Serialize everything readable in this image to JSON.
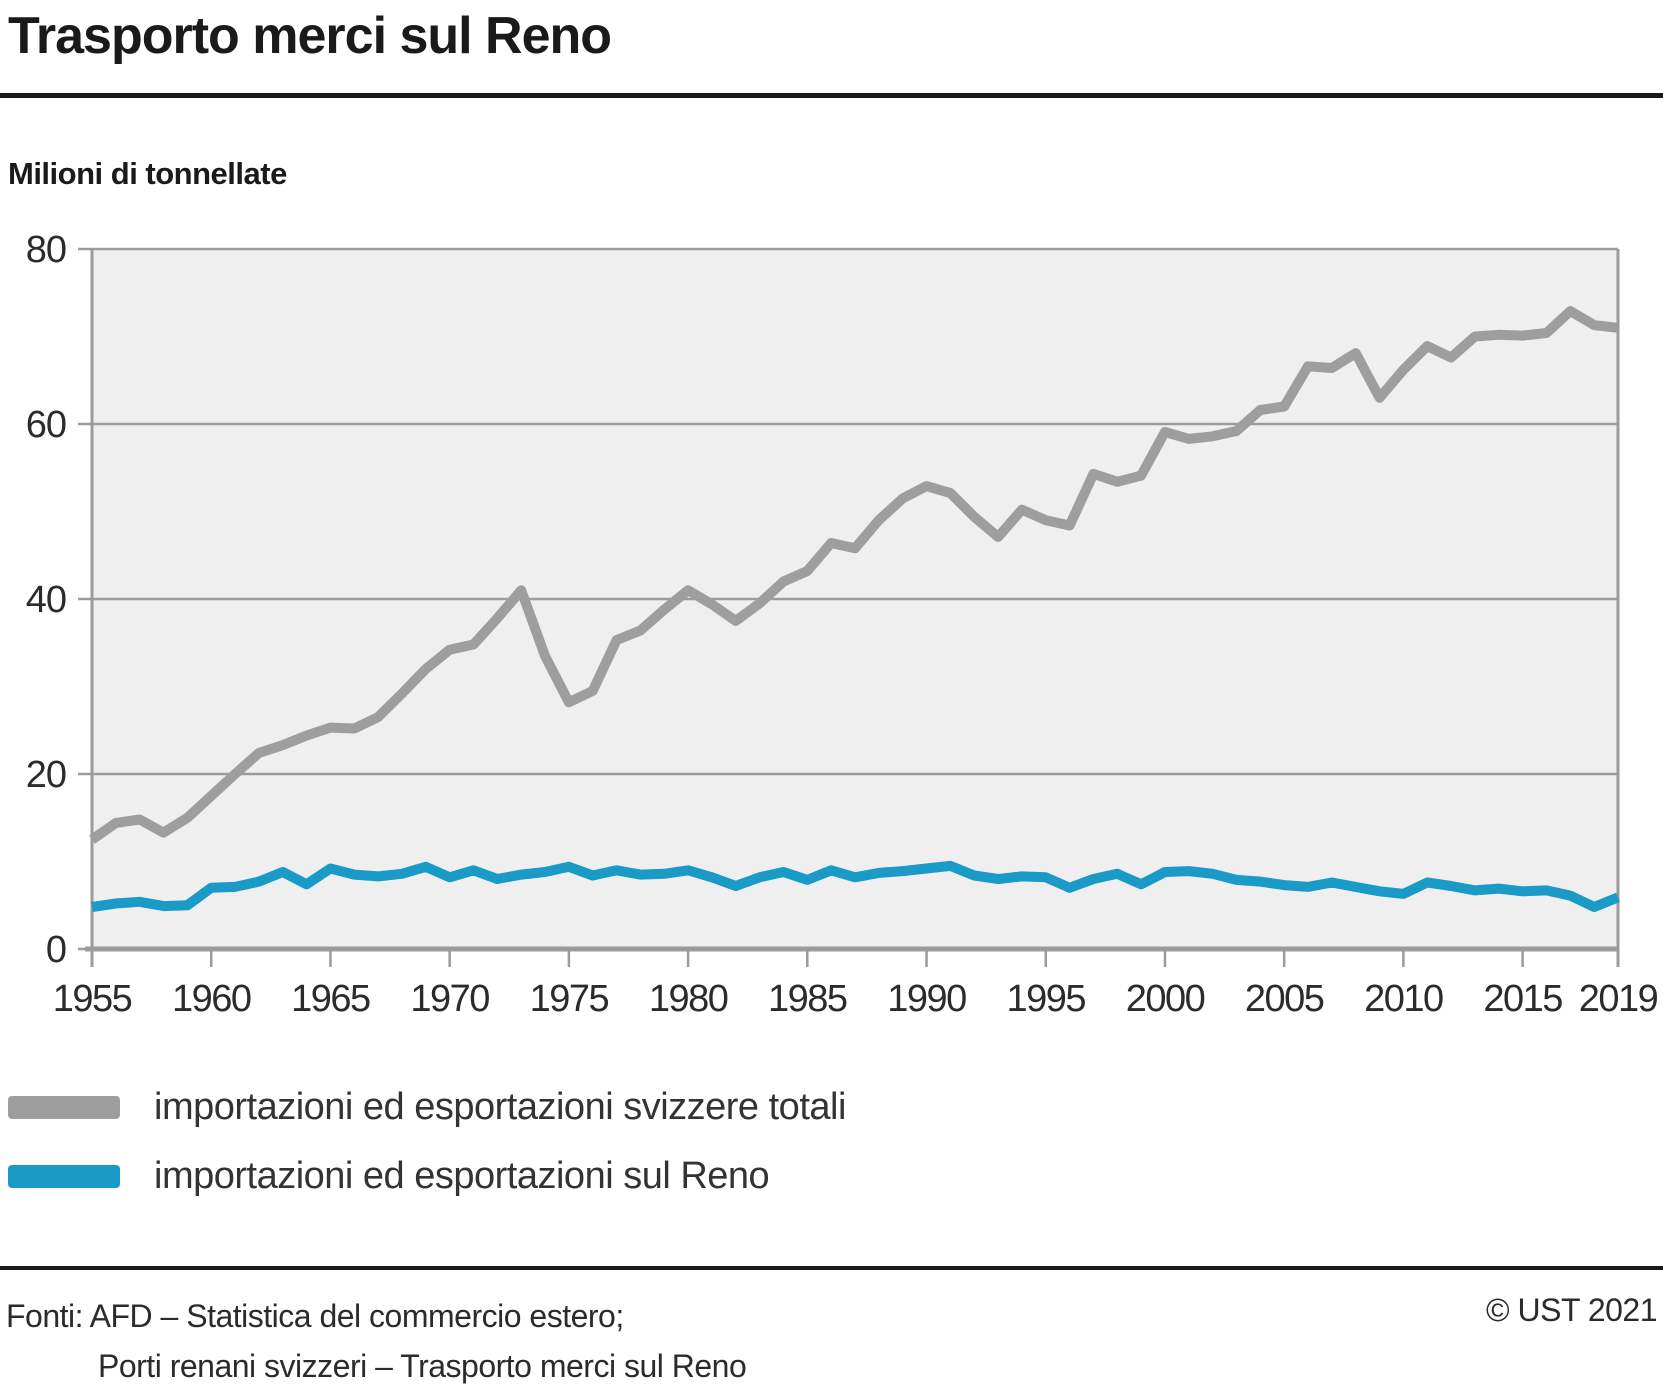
{
  "title": "Trasporto merci sul Reno",
  "subtitle": "Milioni di tonnellate",
  "legend": [
    {
      "label": "importazioni ed esportazioni svizzere totali",
      "color": "#9e9e9e"
    },
    {
      "label": "importazioni ed esportazioni sul Reno",
      "color": "#1a9ac6"
    }
  ],
  "footer": {
    "source_line1": "Fonti: AFD – Statistica del commercio estero;",
    "source_line2": "Porti renani svizzeri – Trasporto merci sul Reno",
    "copyright": "© UST 2021"
  },
  "chart_data": {
    "type": "line",
    "title": "Trasporto merci sul Reno",
    "ylabel": "Milioni di tonnellate",
    "ylim": [
      0,
      80
    ],
    "yticks": [
      0,
      20,
      40,
      60,
      80
    ],
    "xticks": [
      1955,
      1960,
      1965,
      1970,
      1975,
      1980,
      1985,
      1990,
      1995,
      2000,
      2005,
      2010,
      2015,
      2019
    ],
    "grid": true,
    "legend_position": "bottom",
    "plot_background": "#efefef",
    "grid_color": "#9b9b9b",
    "axis_color": "#9b9b9b",
    "tick_label_color": "#2b2b2b",
    "x": [
      1955,
      1956,
      1957,
      1958,
      1959,
      1960,
      1961,
      1962,
      1963,
      1964,
      1965,
      1966,
      1967,
      1968,
      1969,
      1970,
      1971,
      1972,
      1973,
      1974,
      1975,
      1976,
      1977,
      1978,
      1979,
      1980,
      1981,
      1982,
      1983,
      1984,
      1985,
      1986,
      1987,
      1988,
      1989,
      1990,
      1991,
      1992,
      1993,
      1994,
      1995,
      1996,
      1997,
      1998,
      1999,
      2000,
      2001,
      2002,
      2003,
      2004,
      2005,
      2006,
      2007,
      2008,
      2009,
      2010,
      2011,
      2012,
      2013,
      2014,
      2015,
      2016,
      2017,
      2018,
      2019
    ],
    "series": [
      {
        "name": "importazioni ed esportazioni svizzere totali",
        "color": "#9e9e9e",
        "values": [
          12.5,
          14.4,
          14.8,
          13.3,
          15.0,
          17.5,
          20.0,
          22.4,
          23.3,
          24.4,
          25.3,
          25.2,
          26.5,
          29.2,
          32.0,
          34.2,
          34.8,
          37.8,
          41.0,
          33.5,
          28.2,
          29.5,
          35.3,
          36.4,
          38.8,
          41.0,
          39.4,
          37.5,
          39.5,
          42.0,
          43.2,
          46.4,
          45.8,
          49.0,
          51.5,
          52.9,
          52.1,
          49.4,
          47.1,
          50.2,
          49.0,
          48.4,
          54.3,
          53.4,
          54.1,
          59.1,
          58.3,
          58.6,
          59.2,
          61.6,
          62.0,
          66.6,
          66.4,
          68.1,
          63.0,
          66.2,
          68.9,
          67.6,
          70.0,
          70.2,
          70.1,
          70.4,
          72.9,
          71.3,
          71.0
        ]
      },
      {
        "name": "importazioni ed esportazioni sul Reno",
        "color": "#1a9ac6",
        "values": [
          4.8,
          5.2,
          5.4,
          4.9,
          5.0,
          7.0,
          7.1,
          7.7,
          8.8,
          7.4,
          9.2,
          8.5,
          8.3,
          8.6,
          9.4,
          8.2,
          9.0,
          8.0,
          8.5,
          8.8,
          9.4,
          8.4,
          9.0,
          8.5,
          8.6,
          9.0,
          8.2,
          7.2,
          8.2,
          8.8,
          7.9,
          9.0,
          8.2,
          8.7,
          8.9,
          9.2,
          9.5,
          8.4,
          8.0,
          8.3,
          8.2,
          7.0,
          8.0,
          8.6,
          7.4,
          8.8,
          8.9,
          8.6,
          7.9,
          7.7,
          7.3,
          7.1,
          7.6,
          7.1,
          6.6,
          6.3,
          7.6,
          7.2,
          6.7,
          6.9,
          6.6,
          6.7,
          6.1,
          4.8,
          5.9
        ]
      }
    ]
  }
}
